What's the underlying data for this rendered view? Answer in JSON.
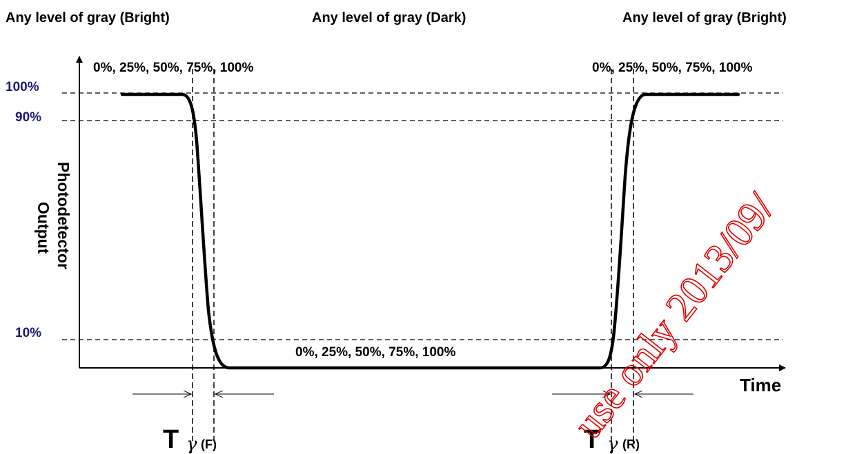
{
  "header": {
    "left": "Any level of gray (Bright)",
    "center": "Any level of gray (Dark)",
    "right": "Any level of gray (Bright)"
  },
  "levels_row": {
    "top_left": "0%, 25%, 50%, 75%, 100%",
    "top_right": "0%, 25%, 50%, 75%, 100%",
    "bottom_center": "0%, 25%, 50%, 75%, 100%"
  },
  "y_axis": {
    "label_line1": "Photodetector",
    "label_line2": "Output",
    "ticks": {
      "p100": "100%",
      "p90": "90%",
      "p10": "10%"
    }
  },
  "x_axis": {
    "label": "Time"
  },
  "intervals": {
    "fall": {
      "symbol": "T",
      "greek": "γ",
      "suffix": "(F)"
    },
    "rise": {
      "symbol": "T",
      "greek": "γ",
      "suffix": "(R)"
    }
  },
  "watermark": "use only 2013/09/",
  "colors": {
    "percent_labels": "#1a1a7a",
    "watermark": "#e00000",
    "curve": "#000000"
  }
}
